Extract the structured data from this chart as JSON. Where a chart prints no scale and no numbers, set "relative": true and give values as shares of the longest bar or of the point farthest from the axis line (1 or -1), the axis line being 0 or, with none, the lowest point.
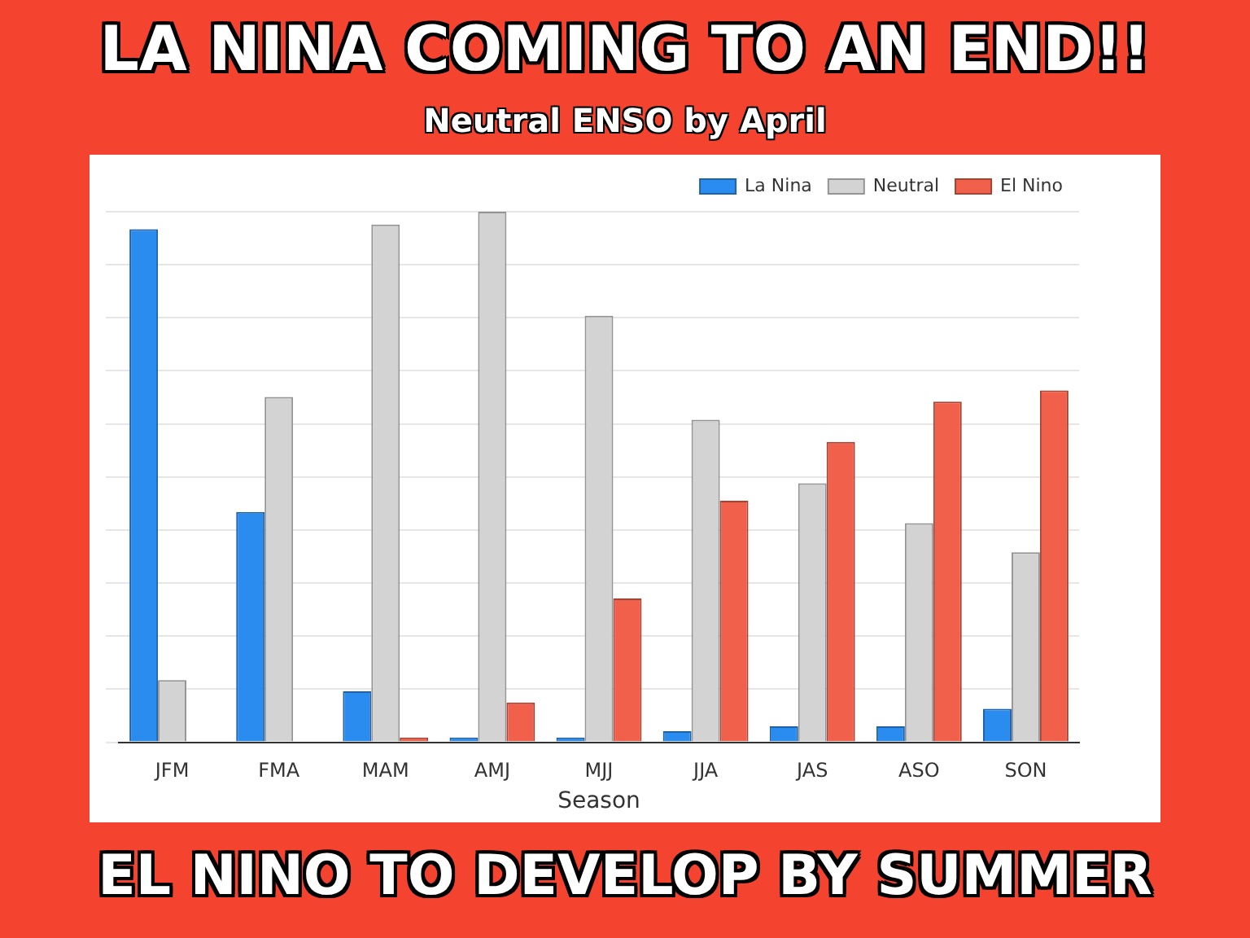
{
  "chart_data": {
    "type": "bar",
    "title": "LA NINA COMING TO AN END!!",
    "subtitle": "Neutral ENSO by April",
    "xlabel": "Season",
    "annotations": [
      "EL NINO TO DEVELOP BY SUMMER"
    ],
    "categories": [
      "JFM",
      "FMA",
      "MAM",
      "AMJ",
      "MJJ",
      "JJA",
      "JAS",
      "ASO",
      "SON"
    ],
    "relative": true,
    "grid": "y",
    "legend": "top right",
    "series": [
      {
        "name": "La Nina",
        "color": "#2b8cf0",
        "values": [
          0.967,
          0.434,
          0.096,
          0.009,
          0.009,
          0.021,
          0.03,
          0.03,
          0.063
        ]
      },
      {
        "name": "Neutral",
        "color": "#d3d3d3",
        "values": [
          0.117,
          0.651,
          0.976,
          1,
          0.804,
          0.608,
          0.488,
          0.413,
          0.358
        ]
      },
      {
        "name": "El Nino",
        "color": "#f0604a",
        "values": [
          0,
          0,
          0.009,
          0.075,
          0.271,
          0.455,
          0.566,
          0.642,
          0.663
        ]
      }
    ]
  }
}
